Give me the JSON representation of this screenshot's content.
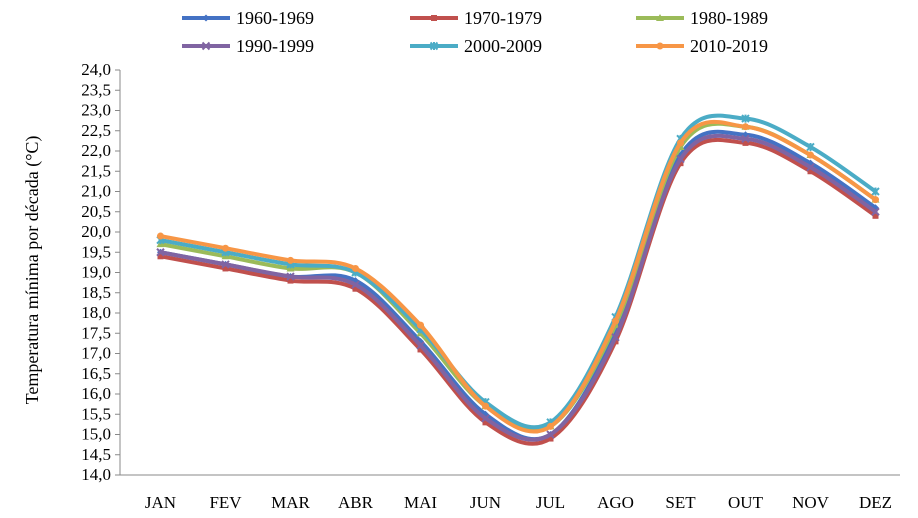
{
  "chart_data": {
    "type": "line",
    "title": "",
    "xlabel": "",
    "ylabel": "Temperatura mínima por década (°C)",
    "categories": [
      "JAN",
      "FEV",
      "MAR",
      "ABR",
      "MAI",
      "JUN",
      "JUL",
      "AGO",
      "SET",
      "OUT",
      "NOV",
      "DEZ"
    ],
    "ylim": [
      14.0,
      24.0
    ],
    "ytick_step": 0.5,
    "yticks": [
      "14,0",
      "14,5",
      "15,0",
      "15,5",
      "16,0",
      "16,5",
      "17,0",
      "17,5",
      "18,0",
      "18,5",
      "19,0",
      "19,5",
      "20,0",
      "20,5",
      "21,0",
      "21,5",
      "22,0",
      "22,5",
      "23,0",
      "23,5",
      "24,0"
    ],
    "grid": false,
    "smooth": true,
    "legend_position": "top",
    "series": [
      {
        "name": "1960-1969",
        "color": "#4472C4",
        "values": [
          19.5,
          19.2,
          18.9,
          18.8,
          17.3,
          15.5,
          15.0,
          17.5,
          21.9,
          22.4,
          21.7,
          20.6
        ]
      },
      {
        "name": "1970-1979",
        "color": "#C0504D",
        "values": [
          19.4,
          19.1,
          18.8,
          18.6,
          17.1,
          15.3,
          14.9,
          17.3,
          21.7,
          22.2,
          21.5,
          20.4
        ]
      },
      {
        "name": "1980-1989",
        "color": "#9BBB59",
        "values": [
          19.7,
          19.4,
          19.1,
          19.0,
          17.5,
          15.7,
          15.2,
          17.7,
          22.1,
          22.6,
          21.9,
          20.8
        ]
      },
      {
        "name": "1990-1999",
        "color": "#8064A2",
        "values": [
          19.5,
          19.2,
          18.9,
          18.7,
          17.2,
          15.4,
          15.0,
          17.4,
          21.8,
          22.3,
          21.6,
          20.5
        ]
      },
      {
        "name": "2000-2009",
        "color": "#4BACC6",
        "values": [
          19.8,
          19.5,
          19.2,
          19.0,
          17.6,
          15.8,
          15.3,
          17.9,
          22.3,
          22.8,
          22.1,
          21.0
        ]
      },
      {
        "name": "2010-2019",
        "color": "#F79646",
        "values": [
          19.9,
          19.6,
          19.3,
          19.1,
          17.7,
          15.7,
          15.2,
          17.8,
          22.2,
          22.6,
          21.9,
          20.8
        ]
      }
    ]
  }
}
